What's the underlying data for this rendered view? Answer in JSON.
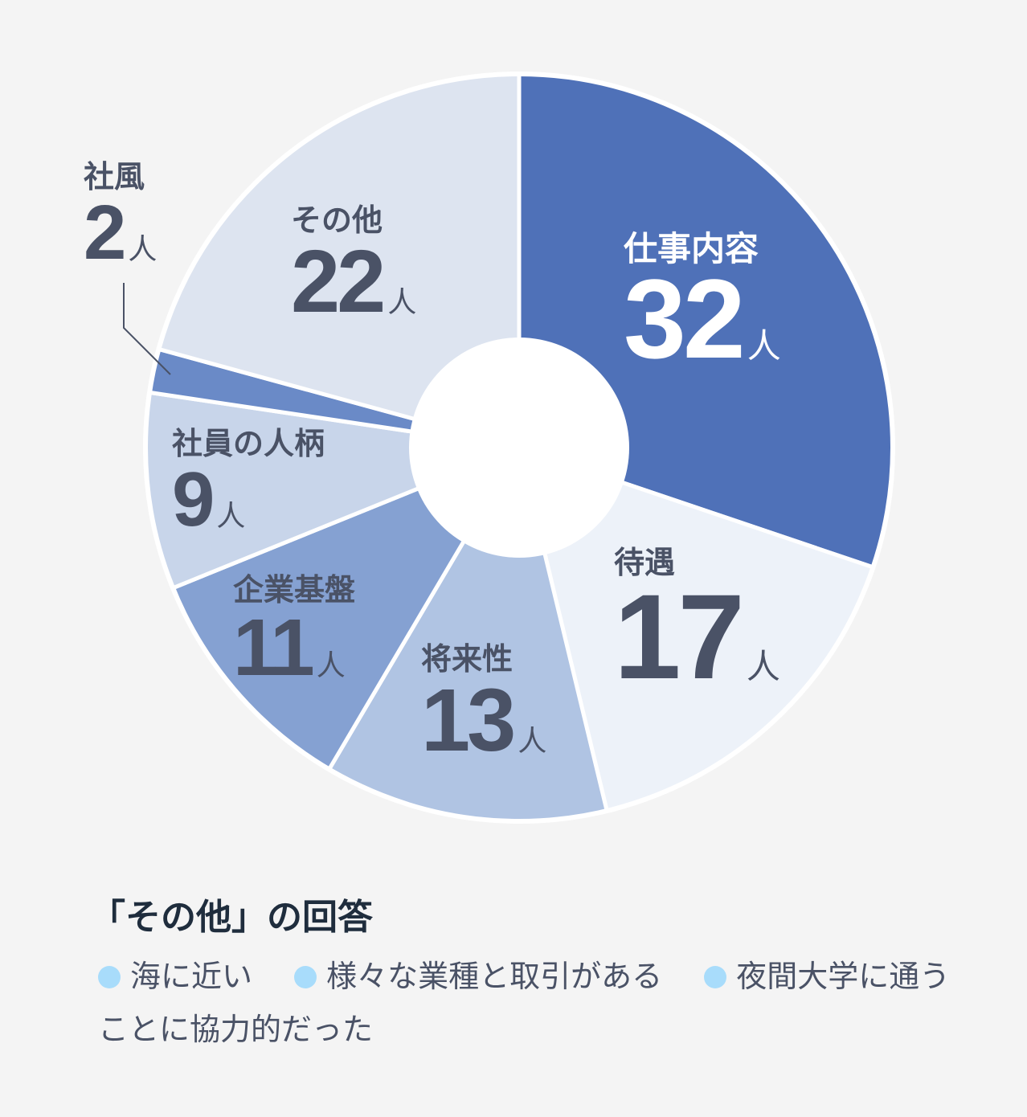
{
  "chart_data": {
    "type": "pie",
    "variant": "donut",
    "unit": "人",
    "title": "",
    "categories": [
      "仕事内容",
      "待遇",
      "将来性",
      "企業基盤",
      "社員の人柄",
      "社風",
      "その他"
    ],
    "values": [
      32,
      17,
      13,
      11,
      9,
      2,
      22
    ],
    "colors": [
      "#4f71b8",
      "#edf2f9",
      "#b0c4e3",
      "#85a1d2",
      "#c8d5ea",
      "#6a8ac7",
      "#dde4f0"
    ],
    "total": 106,
    "start_angle_deg": 0,
    "direction": "clockwise",
    "center": [
      646,
      557
    ],
    "outer_radius": 465,
    "inner_radius": 137
  },
  "labels": [
    {
      "name": "仕事内容",
      "value": "32",
      "unit": "人"
    },
    {
      "name": "待遇",
      "value": "17",
      "unit": "人"
    },
    {
      "name": "将来性",
      "value": "13",
      "unit": "人"
    },
    {
      "name": "企業基盤",
      "value": "11",
      "unit": "人"
    },
    {
      "name": "社員の人柄",
      "value": "9",
      "unit": "人"
    },
    {
      "name": "社風",
      "value": "2",
      "unit": "人"
    },
    {
      "name": "その他",
      "value": "22",
      "unit": "人"
    }
  ],
  "other_answers": {
    "title": "「その他」の回答",
    "items": [
      "海に近い",
      "様々な業種と取引がある",
      "夜間大学に通うことに協力的だった"
    ]
  }
}
